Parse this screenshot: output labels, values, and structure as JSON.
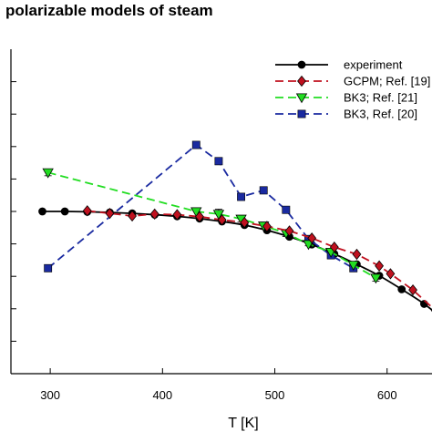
{
  "chart_data": {
    "type": "line",
    "title": "polarizable models of steam",
    "xlabel": "T [K]",
    "ylabel": "",
    "xlim": [
      265,
      640
    ],
    "ylim": [
      0,
      10
    ],
    "xticks": [
      300,
      400,
      500,
      600
    ],
    "yticks": [
      1,
      2,
      3,
      4,
      5,
      6,
      7,
      8,
      9
    ],
    "grid": false,
    "legend_position": "top-right",
    "series": [
      {
        "name": "experiment",
        "color": "#000000",
        "dash": "solid",
        "marker": "circle",
        "x": [
          293,
          313,
          333,
          353,
          373,
          393,
          413,
          433,
          453,
          473,
          493,
          513,
          533,
          553,
          573,
          593,
          613,
          633,
          653
        ],
        "y": [
          5.0,
          5.0,
          4.99,
          4.97,
          4.94,
          4.9,
          4.85,
          4.78,
          4.69,
          4.58,
          4.42,
          4.22,
          3.98,
          3.69,
          3.37,
          3.02,
          2.6,
          2.15,
          1.6
        ]
      },
      {
        "name": "GCPM; Ref. [19]",
        "color": "#c0111f",
        "dash": "dashed",
        "marker": "diamond",
        "x": [
          333,
          353,
          373,
          393,
          413,
          433,
          453,
          473,
          493,
          513,
          533,
          553,
          573,
          593,
          603,
          623,
          643,
          663
        ],
        "y": [
          5.02,
          4.94,
          4.86,
          4.92,
          4.9,
          4.84,
          4.74,
          4.66,
          4.54,
          4.4,
          4.18,
          3.9,
          3.68,
          3.32,
          3.08,
          2.58,
          1.95,
          1.3
        ]
      },
      {
        "name": "BK3; Ref. [21]",
        "color": "#22dd22",
        "dash": "dashed",
        "marker": "triangle-down",
        "x": [
          298,
          430,
          450,
          470,
          490,
          510,
          530,
          550,
          570,
          590
        ],
        "y": [
          6.2,
          5.0,
          4.92,
          4.77,
          4.56,
          4.33,
          3.99,
          3.75,
          3.35,
          2.95
        ],
        "yerr": [
          0.1,
          0.0,
          0.15,
          0.1,
          0.1,
          0.1,
          0.05,
          0.0,
          0.0,
          0.1
        ]
      },
      {
        "name": "BK3, Ref. [20]",
        "color": "#1a2aa0",
        "dash": "dashed",
        "marker": "square",
        "x": [
          298,
          430,
          450,
          470,
          490,
          510,
          530,
          550,
          570
        ],
        "y": [
          3.25,
          7.05,
          6.55,
          5.45,
          5.65,
          5.05,
          4.15,
          3.65,
          3.25
        ]
      }
    ]
  }
}
